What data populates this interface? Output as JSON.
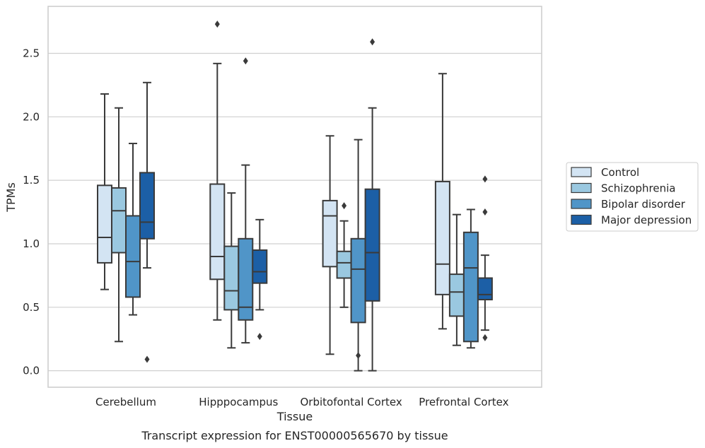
{
  "chart_data": {
    "type": "box",
    "xlabel": "Tissue",
    "ylabel": "TPMs",
    "caption": "Transcript expression for ENST00000565670 by tissue",
    "ylim": [
      -0.13,
      2.87
    ],
    "yticks": [
      "0.0",
      "0.5",
      "1.0",
      "1.5",
      "2.0",
      "2.5"
    ],
    "categories": [
      "Cerebellum",
      "Hipppocampus",
      "Orbitofontal Cortex",
      "Prefrontal Cortex"
    ],
    "grid": "horizontal",
    "legend_position": "right",
    "series": [
      {
        "name": "Control",
        "color": "#d3e4f3",
        "boxes": [
          {
            "whislo": 0.64,
            "q1": 0.85,
            "med": 1.05,
            "q3": 1.46,
            "whishi": 2.18,
            "fliers": []
          },
          {
            "whislo": 0.4,
            "q1": 0.72,
            "med": 0.9,
            "q3": 1.47,
            "whishi": 2.42,
            "fliers": [
              2.73
            ]
          },
          {
            "whislo": 0.13,
            "q1": 0.82,
            "med": 1.22,
            "q3": 1.34,
            "whishi": 1.85,
            "fliers": []
          },
          {
            "whislo": 0.33,
            "q1": 0.6,
            "med": 0.84,
            "q3": 1.49,
            "whishi": 2.34,
            "fliers": []
          }
        ]
      },
      {
        "name": "Schizophrenia",
        "color": "#9ac8e0",
        "boxes": [
          {
            "whislo": 0.23,
            "q1": 0.93,
            "med": 1.26,
            "q3": 1.44,
            "whishi": 2.07,
            "fliers": []
          },
          {
            "whislo": 0.18,
            "q1": 0.48,
            "med": 0.63,
            "q3": 0.98,
            "whishi": 1.4,
            "fliers": []
          },
          {
            "whislo": 0.5,
            "q1": 0.73,
            "med": 0.85,
            "q3": 0.94,
            "whishi": 1.18,
            "fliers": [
              1.3
            ]
          },
          {
            "whislo": 0.2,
            "q1": 0.43,
            "med": 0.62,
            "q3": 0.76,
            "whishi": 1.23,
            "fliers": []
          }
        ]
      },
      {
        "name": "Bipolar disorder",
        "color": "#5095c8",
        "boxes": [
          {
            "whislo": 0.44,
            "q1": 0.58,
            "med": 0.86,
            "q3": 1.22,
            "whishi": 1.79,
            "fliers": []
          },
          {
            "whislo": 0.22,
            "q1": 0.4,
            "med": 0.5,
            "q3": 1.04,
            "whishi": 1.62,
            "fliers": [
              2.44
            ]
          },
          {
            "whislo": 0.0,
            "q1": 0.38,
            "med": 0.8,
            "q3": 1.04,
            "whishi": 1.82,
            "fliers": [
              0.12
            ]
          },
          {
            "whislo": 0.18,
            "q1": 0.23,
            "med": 0.81,
            "q3": 1.09,
            "whishi": 1.27,
            "fliers": []
          }
        ]
      },
      {
        "name": "Major depression",
        "color": "#1c5fa6",
        "boxes": [
          {
            "whislo": 0.81,
            "q1": 1.04,
            "med": 1.17,
            "q3": 1.56,
            "whishi": 2.27,
            "fliers": [
              0.09
            ]
          },
          {
            "whislo": 0.48,
            "q1": 0.69,
            "med": 0.78,
            "q3": 0.95,
            "whishi": 1.19,
            "fliers": [
              0.27
            ]
          },
          {
            "whislo": 0.0,
            "q1": 0.55,
            "med": 0.93,
            "q3": 1.43,
            "whishi": 2.07,
            "fliers": [
              2.59
            ]
          },
          {
            "whislo": 0.32,
            "q1": 0.56,
            "med": 0.6,
            "q3": 0.73,
            "whishi": 0.91,
            "fliers": [
              0.26,
              1.25,
              1.51
            ]
          }
        ]
      }
    ],
    "colors": {
      "line": "#3a3a3a",
      "grid": "#d0d0d0",
      "frame": "#cccccc",
      "background": "#ffffff"
    }
  }
}
